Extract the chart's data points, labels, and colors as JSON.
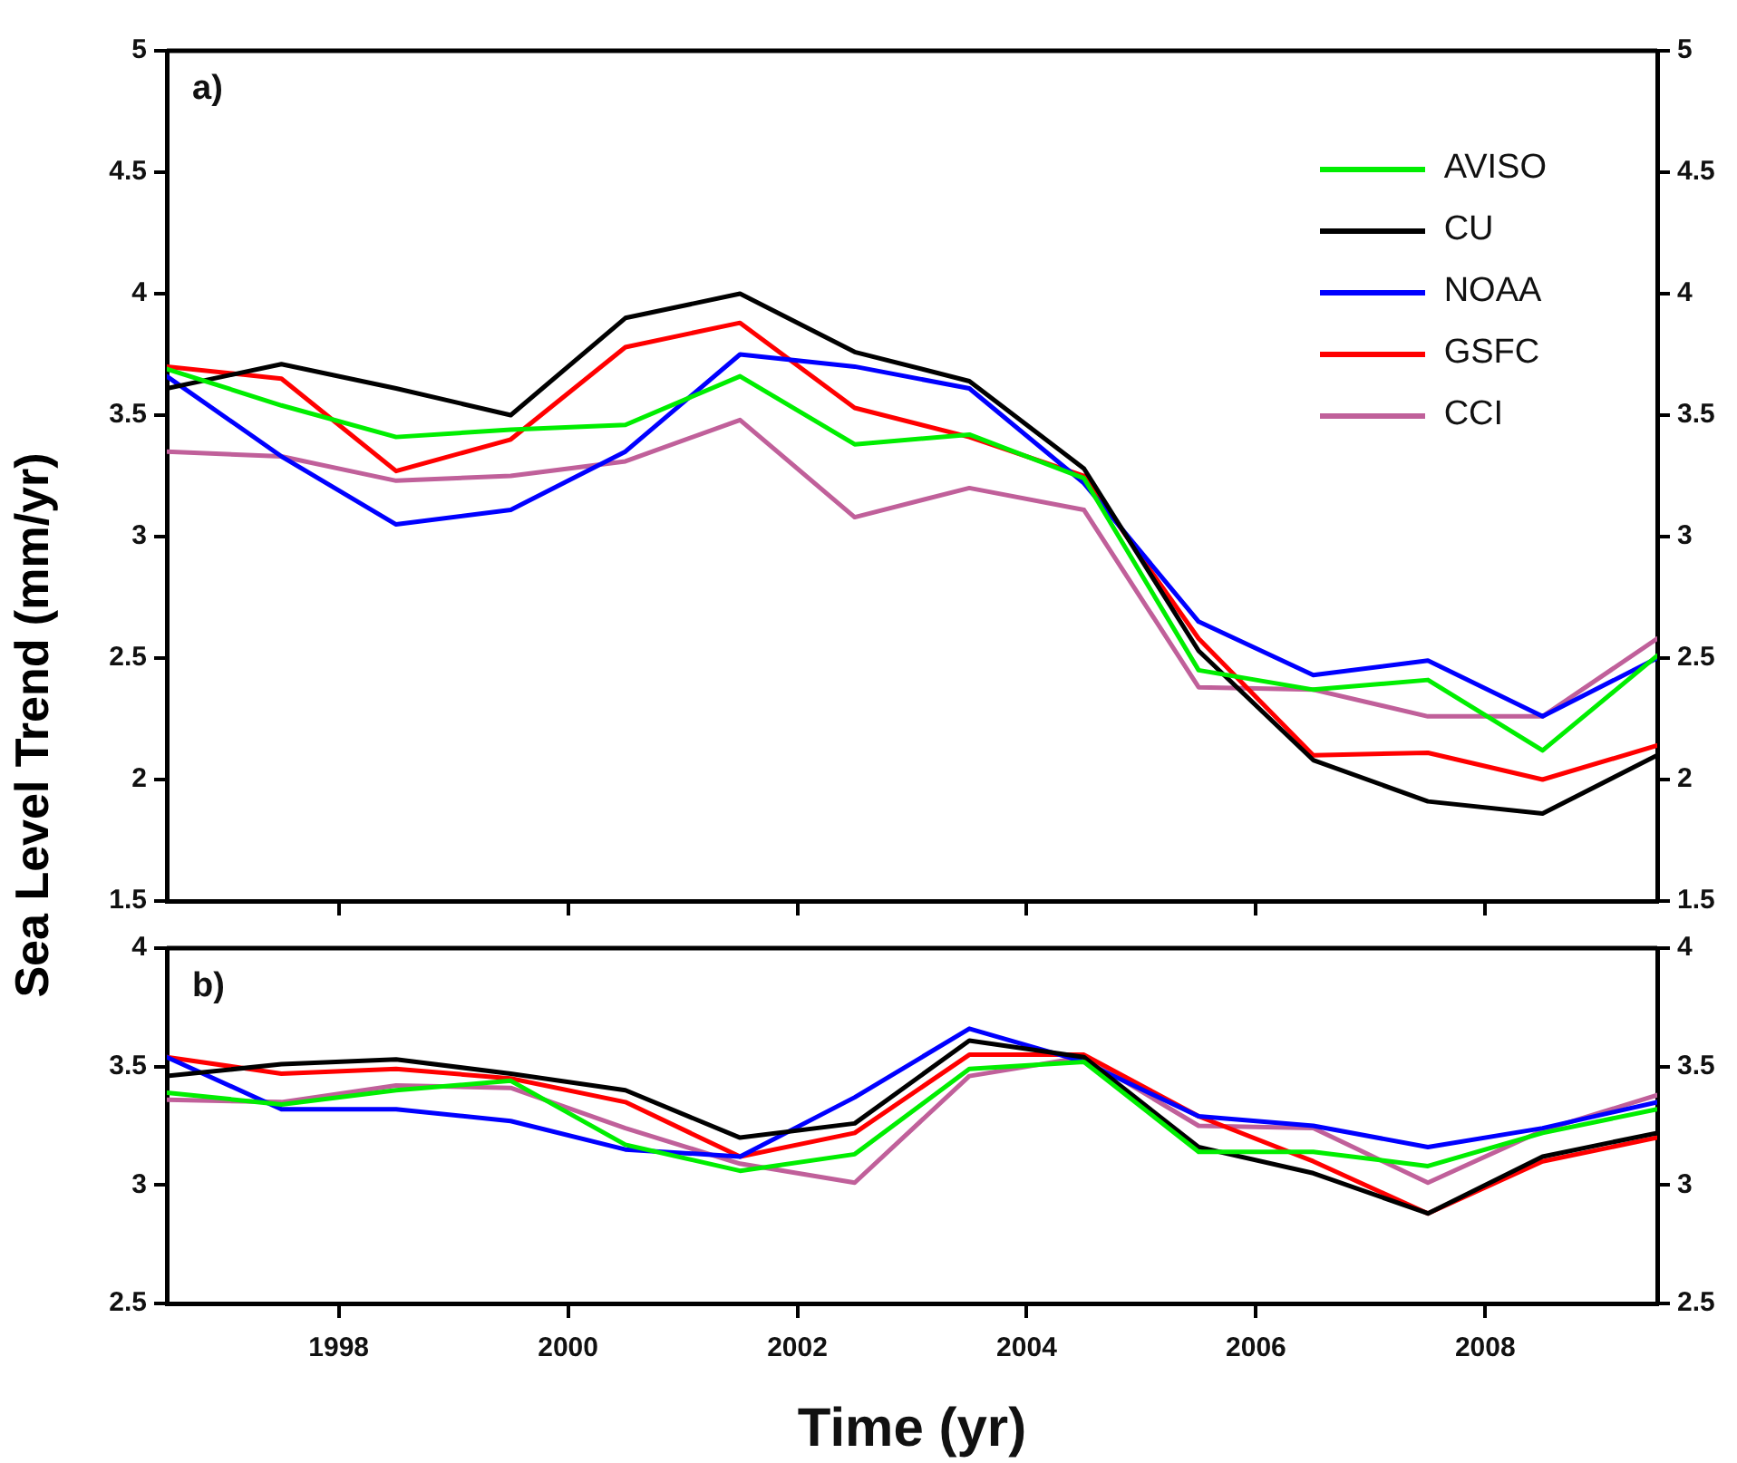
{
  "chart_data": [
    {
      "type": "line",
      "ylabel": "Sea Level Trend (mm/yr)",
      "annotations": [
        "a)"
      ],
      "legend": "top right",
      "grid": false,
      "tick_labels": "y",
      "line_style": "solid",
      "x": [
        1996.5,
        1997.5,
        1998.5,
        1999.5,
        2000.5,
        2001.5,
        2002.5,
        2003.5,
        2004.5,
        2005.5,
        2006.5,
        2007.5,
        2008.5,
        2009.5
      ],
      "xlim": [
        1996.5,
        2009.5
      ],
      "xticks": [
        1998,
        2000,
        2002,
        2004,
        2006,
        2008
      ],
      "ylim": [
        1.5,
        5
      ],
      "yticks": [
        1.5,
        2,
        2.5,
        3,
        3.5,
        4,
        4.5,
        5
      ],
      "y2lim": [
        1.5,
        5
      ],
      "y2ticks": [
        1.5,
        2,
        2.5,
        3,
        3.5,
        4,
        4.5,
        5
      ],
      "series": [
        {
          "name": "AVISO",
          "color": "#00ee00",
          "values": [
            3.69,
            3.54,
            3.41,
            3.44,
            3.46,
            3.66,
            3.38,
            3.42,
            3.24,
            2.45,
            2.37,
            2.41,
            2.12,
            2.51
          ]
        },
        {
          "name": "CU",
          "color": "#000000",
          "values": [
            3.61,
            3.71,
            3.61,
            3.5,
            3.9,
            4.0,
            3.76,
            3.64,
            3.28,
            2.53,
            2.08,
            1.91,
            1.86,
            2.1
          ]
        },
        {
          "name": "NOAA",
          "color": "#0000ff",
          "values": [
            3.66,
            3.33,
            3.05,
            3.11,
            3.35,
            3.75,
            3.7,
            3.61,
            3.22,
            2.65,
            2.43,
            2.49,
            2.26,
            2.5
          ]
        },
        {
          "name": "GSFC",
          "color": "#ff0000",
          "values": [
            3.7,
            3.65,
            3.27,
            3.4,
            3.78,
            3.88,
            3.53,
            3.41,
            3.25,
            2.58,
            2.1,
            2.11,
            2.0,
            2.14
          ]
        },
        {
          "name": "CCI",
          "color": "#c0609a",
          "values": [
            3.35,
            3.33,
            3.23,
            3.25,
            3.31,
            3.48,
            3.08,
            3.2,
            3.11,
            2.38,
            2.37,
            2.26,
            2.26,
            2.58
          ]
        }
      ]
    },
    {
      "type": "line",
      "xlabel": "Time (yr)",
      "annotations": [
        "b)"
      ],
      "grid": false,
      "line_style": "solid",
      "x": [
        1996.5,
        1997.5,
        1998.5,
        1999.5,
        2000.5,
        2001.5,
        2002.5,
        2003.5,
        2004.5,
        2005.5,
        2006.5,
        2007.5,
        2008.5,
        2009.5
      ],
      "xlim": [
        1996.5,
        2009.5
      ],
      "xticks": [
        1998,
        2000,
        2002,
        2004,
        2006,
        2008
      ],
      "ylim": [
        2.5,
        4
      ],
      "yticks": [
        2.5,
        3,
        3.5,
        4
      ],
      "y2lim": [
        2.5,
        4
      ],
      "y2ticks": [
        2.5,
        3,
        3.5,
        4
      ],
      "series": [
        {
          "color": "#00ee00",
          "values": [
            3.39,
            3.34,
            3.4,
            3.44,
            3.17,
            3.06,
            3.13,
            3.49,
            3.52,
            3.14,
            3.14,
            3.08,
            3.22,
            3.32
          ]
        },
        {
          "color": "#000000",
          "values": [
            3.46,
            3.51,
            3.53,
            3.47,
            3.4,
            3.2,
            3.26,
            3.61,
            3.54,
            3.16,
            3.05,
            2.88,
            3.12,
            3.22
          ]
        },
        {
          "color": "#0000ff",
          "values": [
            3.54,
            3.32,
            3.32,
            3.27,
            3.15,
            3.12,
            3.37,
            3.66,
            3.52,
            3.29,
            3.25,
            3.16,
            3.24,
            3.35
          ]
        },
        {
          "color": "#ff0000",
          "values": [
            3.54,
            3.47,
            3.49,
            3.45,
            3.35,
            3.12,
            3.22,
            3.55,
            3.55,
            3.29,
            3.1,
            2.88,
            3.1,
            3.2
          ]
        },
        {
          "color": "#c0609a",
          "values": [
            3.36,
            3.35,
            3.42,
            3.41,
            3.24,
            3.09,
            3.01,
            3.46,
            3.54,
            3.25,
            3.24,
            3.01,
            3.23,
            3.38
          ]
        }
      ]
    }
  ]
}
